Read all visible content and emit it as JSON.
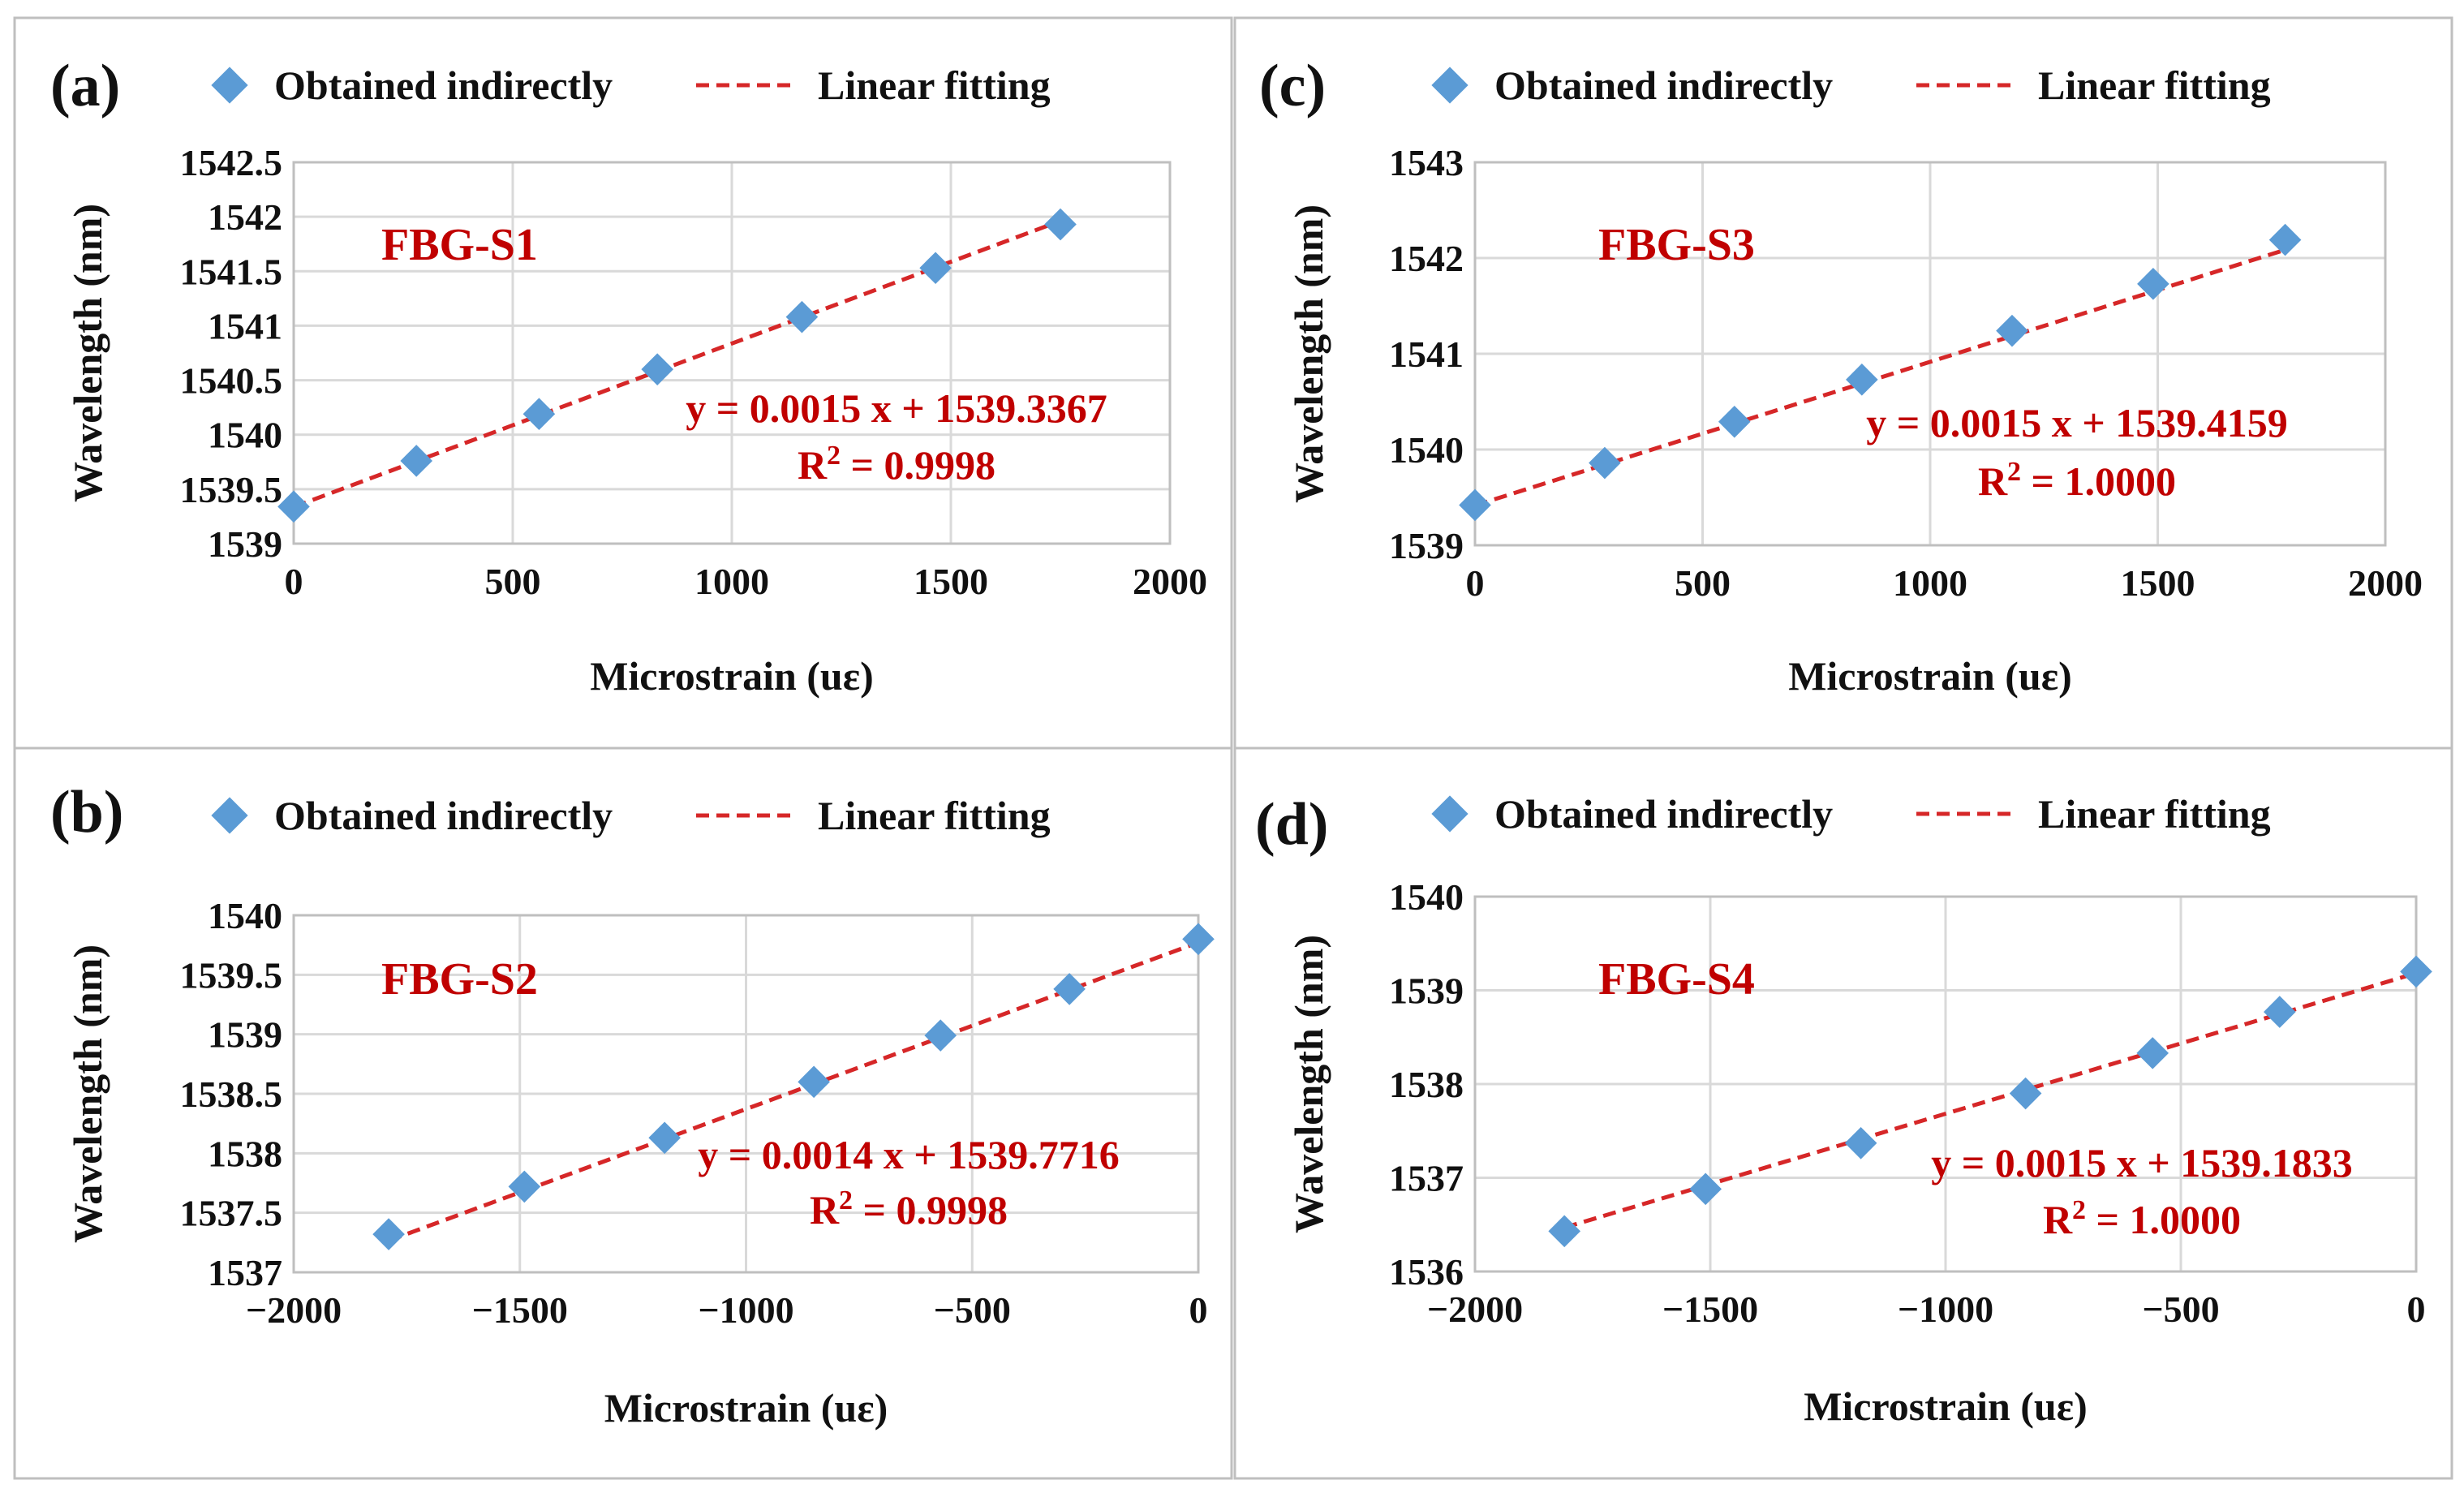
{
  "chart_data": [
    {
      "type": "scatter",
      "panel_label": "(a)",
      "sensor": "FBG-S1",
      "xlabel": "Microstrain (uε)",
      "ylabel": "Wavelength (nm)",
      "legend": [
        "Obtained indirectly",
        "Linear fitting"
      ],
      "legend_position": "top",
      "grid": true,
      "xlim": [
        0,
        2000
      ],
      "ylim": [
        1539,
        1542.5
      ],
      "xticks": [
        0,
        500,
        1000,
        1500,
        2000
      ],
      "yticks": [
        1539,
        1539.5,
        1540,
        1540.5,
        1541,
        1541.5,
        1542,
        1542.5
      ],
      "xtick_labels": [
        "0",
        "500",
        "1000",
        "1500",
        "2000"
      ],
      "ytick_labels": [
        "1539",
        "1539.5",
        "1540",
        "1540.5",
        "1541",
        "1541.5",
        "1542",
        "1542.5"
      ],
      "series": [
        {
          "name": "Obtained indirectly",
          "x": [
            0,
            280,
            560,
            830,
            1160,
            1465,
            1750
          ],
          "y": [
            1539.34,
            1539.76,
            1540.19,
            1540.6,
            1541.08,
            1541.53,
            1541.93
          ]
        }
      ],
      "fit": {
        "slope": 0.0015,
        "intercept": 1539.3367
      },
      "equation_text": "y = 0.0015 x + 1539.3367",
      "r2_label": "R",
      "r2_sup": "2",
      "r2_value": " = 0.9998"
    },
    {
      "type": "scatter",
      "panel_label": "(b)",
      "sensor": "FBG-S2",
      "xlabel": "Microstrain (uε)",
      "ylabel": "Wavelength (nm)",
      "legend": [
        "Obtained indirectly",
        "Linear fitting"
      ],
      "legend_position": "top",
      "grid": true,
      "xlim": [
        -2000,
        0
      ],
      "ylim": [
        1537,
        1540
      ],
      "xticks": [
        -2000,
        -1500,
        -1000,
        -500,
        0
      ],
      "yticks": [
        1537,
        1537.5,
        1538,
        1538.5,
        1539,
        1539.5,
        1540
      ],
      "xtick_labels": [
        "−2000",
        "−1500",
        "−1000",
        "−500",
        "0"
      ],
      "ytick_labels": [
        "1537",
        "1537.5",
        "1538",
        "1538.5",
        "1539",
        "1539.5",
        "1540"
      ],
      "series": [
        {
          "name": "Obtained indirectly",
          "x": [
            -1790,
            -1490,
            -1180,
            -850,
            -570,
            -285,
            0
          ],
          "y": [
            1537.32,
            1537.72,
            1538.13,
            1538.6,
            1538.99,
            1539.38,
            1539.8
          ]
        }
      ],
      "fit": {
        "slope": 0.0014,
        "intercept": 1539.7716
      },
      "equation_text": "y = 0.0014 x + 1539.7716",
      "r2_label": "R",
      "r2_sup": "2",
      "r2_value": " = 0.9998"
    },
    {
      "type": "scatter",
      "panel_label": "(c)",
      "sensor": "FBG-S3",
      "xlabel": "Microstrain (uε)",
      "ylabel": "Wavelength (nm)",
      "legend": [
        "Obtained indirectly",
        "Linear fitting"
      ],
      "legend_position": "top",
      "grid": true,
      "xlim": [
        0,
        2000
      ],
      "ylim": [
        1539,
        1543
      ],
      "xticks": [
        0,
        500,
        1000,
        1500,
        2000
      ],
      "yticks": [
        1539,
        1540,
        1541,
        1542,
        1543
      ],
      "xtick_labels": [
        "0",
        "500",
        "1000",
        "1500",
        "2000"
      ],
      "ytick_labels": [
        "1539",
        "1540",
        "1541",
        "1542",
        "1543"
      ],
      "series": [
        {
          "name": "Obtained indirectly",
          "x": [
            0,
            285,
            570,
            850,
            1180,
            1490,
            1780
          ],
          "y": [
            1539.42,
            1539.86,
            1540.29,
            1540.73,
            1541.24,
            1541.73,
            1542.19
          ]
        }
      ],
      "fit": {
        "slope": 0.0015,
        "intercept": 1539.4159
      },
      "equation_text": "y = 0.0015 x + 1539.4159",
      "r2_label": "R",
      "r2_sup": "2",
      "r2_value": " = 1.0000"
    },
    {
      "type": "scatter",
      "panel_label": "(d)",
      "sensor": "FBG-S4",
      "xlabel": "Microstrain (uε)",
      "ylabel": "Wavelength (nm)",
      "legend": [
        "Obtained indirectly",
        "Linear fitting"
      ],
      "legend_position": "top",
      "grid": true,
      "xlim": [
        -2000,
        0
      ],
      "ylim": [
        1536,
        1540
      ],
      "xticks": [
        -2000,
        -1500,
        -1000,
        -500,
        0
      ],
      "yticks": [
        1536,
        1537,
        1538,
        1539,
        1540
      ],
      "xtick_labels": [
        "−2000",
        "−1500",
        "−1000",
        "−500",
        "0"
      ],
      "ytick_labels": [
        "1536",
        "1537",
        "1538",
        "1539",
        "1540"
      ],
      "series": [
        {
          "name": "Obtained indirectly",
          "x": [
            -1810,
            -1510,
            -1180,
            -830,
            -560,
            -290,
            0
          ],
          "y": [
            1536.43,
            1536.88,
            1537.37,
            1537.9,
            1538.33,
            1538.77,
            1539.2
          ]
        }
      ],
      "fit": {
        "slope": 0.0015,
        "intercept": 1539.1833
      },
      "equation_text": "y = 0.0015 x + 1539.1833",
      "r2_label": "R",
      "r2_sup": "2",
      "r2_value": " = 1.0000"
    }
  ],
  "colors": {
    "marker": "#5b9bd5",
    "fit_line": "#d62728",
    "annotation": "#c00000"
  }
}
